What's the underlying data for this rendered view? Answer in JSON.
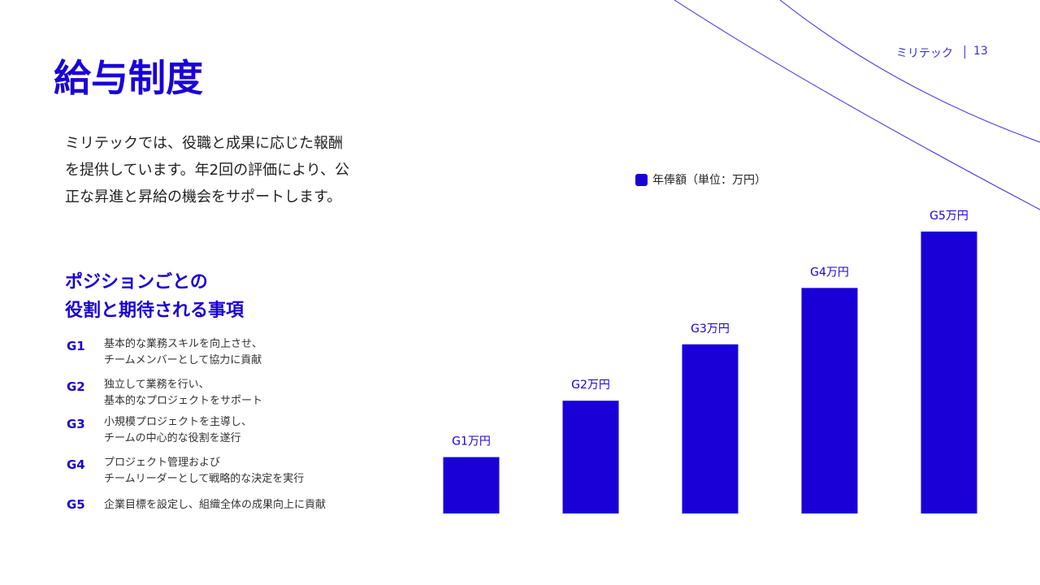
{
  "header": {
    "title": "給与制度",
    "brand": "ミリテック",
    "page_number": "13"
  },
  "description": [
    "ミリテックでは、役職と成果に応じた報酬",
    "を提供しています。年2回の評価により、公",
    "正な昇進と昇給の機会をサポートします。"
  ],
  "roles_section": {
    "heading": [
      "ポジションごとの",
      "役割と期待される事項"
    ],
    "roles": [
      {
        "grade": "G1",
        "lines": [
          "基本的な業務スキルを向上させ、",
          "チームメンバーとして協力に貢献"
        ]
      },
      {
        "grade": "G2",
        "lines": [
          "独立して業務を行い、",
          "基本的なプロジェクトをサポート"
        ]
      },
      {
        "grade": "G3",
        "lines": [
          "小規模プロジェクトを主導し、",
          "チームの中心的な役割を遂行"
        ]
      },
      {
        "grade": "G4",
        "lines": [
          "プロジェクト管理および",
          "チームリーダーとして戦略的な決定を実行"
        ]
      },
      {
        "grade": "G5",
        "lines": [
          "企業目標を設定し、組織全体の成果向上に貢献"
        ]
      }
    ]
  },
  "chart_data": {
    "type": "bar",
    "series": [
      {
        "name": "年俸額（単位：万円）",
        "color": "#1a00d6",
        "values": [
          1,
          2,
          3,
          4,
          5
        ],
        "value_labels": [
          "G1万円",
          "G2万円",
          "G3万円",
          "G4万円",
          "G5万円"
        ]
      }
    ]
  }
}
